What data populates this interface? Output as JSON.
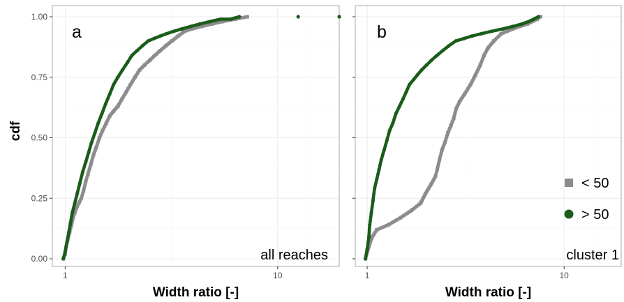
{
  "chart_data": {
    "type": "scatter",
    "ylabel": "cdf",
    "x_scale": "log",
    "y_ticks": [
      "0.00",
      "0.25",
      "0.50",
      "0.75",
      "1.00"
    ],
    "ylim": [
      0,
      1
    ],
    "legend_placement": "bottom-right of panel b",
    "colors": {
      "lt50": "#8c8c8c",
      "gt50": "#1a5c1a"
    },
    "panels": [
      {
        "letter": "a",
        "note": "all reaches",
        "xlabel": "Width ratio [-]",
        "x_ticks": [
          "1",
          "10"
        ],
        "xlim": [
          0.87,
          19.5
        ],
        "series": [
          {
            "name": "< 50",
            "points": [
              [
                0.98,
                0.0
              ],
              [
                1.0,
                0.02
              ],
              [
                1.01,
                0.05
              ],
              [
                1.03,
                0.08
              ],
              [
                1.05,
                0.11
              ],
              [
                1.07,
                0.14
              ],
              [
                1.09,
                0.17
              ],
              [
                1.11,
                0.19
              ],
              [
                1.13,
                0.21
              ],
              [
                1.16,
                0.23
              ],
              [
                1.19,
                0.25
              ],
              [
                1.22,
                0.28
              ],
              [
                1.25,
                0.32
              ],
              [
                1.28,
                0.35
              ],
              [
                1.32,
                0.39
              ],
              [
                1.36,
                0.43
              ],
              [
                1.4,
                0.46
              ],
              [
                1.45,
                0.5
              ],
              [
                1.5,
                0.53
              ],
              [
                1.56,
                0.56
              ],
              [
                1.62,
                0.59
              ],
              [
                1.69,
                0.61
              ],
              [
                1.77,
                0.63
              ],
              [
                1.85,
                0.66
              ],
              [
                1.94,
                0.69
              ],
              [
                2.03,
                0.72
              ],
              [
                2.13,
                0.75
              ],
              [
                2.24,
                0.78
              ],
              [
                2.36,
                0.8
              ],
              [
                2.5,
                0.82
              ],
              [
                2.64,
                0.84
              ],
              [
                2.8,
                0.86
              ],
              [
                2.98,
                0.88
              ],
              [
                3.18,
                0.9
              ],
              [
                3.4,
                0.92
              ],
              [
                3.65,
                0.94
              ],
              [
                3.95,
                0.95
              ],
              [
                4.4,
                0.96
              ],
              [
                4.9,
                0.97
              ],
              [
                5.5,
                0.98
              ],
              [
                6.3,
                0.99
              ],
              [
                7.2,
                1.0
              ]
            ]
          },
          {
            "name": "> 50",
            "points": [
              [
                0.98,
                0.0
              ],
              [
                1.0,
                0.03
              ],
              [
                1.02,
                0.07
              ],
              [
                1.04,
                0.11
              ],
              [
                1.06,
                0.15
              ],
              [
                1.08,
                0.19
              ],
              [
                1.11,
                0.23
              ],
              [
                1.14,
                0.27
              ],
              [
                1.17,
                0.31
              ],
              [
                1.21,
                0.36
              ],
              [
                1.25,
                0.4
              ],
              [
                1.29,
                0.44
              ],
              [
                1.33,
                0.48
              ],
              [
                1.38,
                0.52
              ],
              [
                1.43,
                0.56
              ],
              [
                1.49,
                0.6
              ],
              [
                1.55,
                0.64
              ],
              [
                1.62,
                0.68
              ],
              [
                1.69,
                0.72
              ],
              [
                1.77,
                0.75
              ],
              [
                1.86,
                0.78
              ],
              [
                1.96,
                0.81
              ],
              [
                2.06,
                0.84
              ],
              [
                2.18,
                0.86
              ],
              [
                2.31,
                0.88
              ],
              [
                2.46,
                0.9
              ],
              [
                2.62,
                0.91
              ],
              [
                2.8,
                0.92
              ],
              [
                3.0,
                0.93
              ],
              [
                3.25,
                0.94
              ],
              [
                3.55,
                0.95
              ],
              [
                3.9,
                0.96
              ],
              [
                4.3,
                0.97
              ],
              [
                4.8,
                0.98
              ],
              [
                5.4,
                0.99
              ],
              [
                6.0,
                0.99
              ],
              [
                6.6,
                1.0
              ],
              [
                12.5,
                1.0
              ],
              [
                19.5,
                1.0
              ]
            ]
          }
        ]
      },
      {
        "letter": "b",
        "note": "cluster 1",
        "xlabel": "Width ratio [-]",
        "x_ticks": [
          "1",
          "10"
        ],
        "xlim": [
          0.87,
          19.5
        ],
        "series": [
          {
            "name": "< 50",
            "points": [
              [
                0.98,
                0.0
              ],
              [
                1.02,
                0.05
              ],
              [
                1.06,
                0.09
              ],
              [
                1.12,
                0.12
              ],
              [
                1.28,
                0.14
              ],
              [
                1.48,
                0.17
              ],
              [
                1.68,
                0.2
              ],
              [
                1.87,
                0.23
              ],
              [
                1.98,
                0.27
              ],
              [
                2.12,
                0.31
              ],
              [
                2.22,
                0.34
              ],
              [
                2.27,
                0.37
              ],
              [
                2.33,
                0.41
              ],
              [
                2.4,
                0.45
              ],
              [
                2.48,
                0.48
              ],
              [
                2.57,
                0.52
              ],
              [
                2.66,
                0.55
              ],
              [
                2.75,
                0.58
              ],
              [
                2.83,
                0.62
              ],
              [
                2.95,
                0.65
              ],
              [
                3.12,
                0.68
              ],
              [
                3.35,
                0.72
              ],
              [
                3.55,
                0.76
              ],
              [
                3.75,
                0.8
              ],
              [
                3.92,
                0.84
              ],
              [
                4.1,
                0.87
              ],
              [
                4.4,
                0.9
              ],
              [
                4.8,
                0.93
              ],
              [
                5.5,
                0.95
              ],
              [
                6.5,
                0.97
              ],
              [
                7.3,
                0.99
              ],
              [
                7.6,
                1.0
              ]
            ]
          },
          {
            "name": "> 50",
            "points": [
              [
                0.98,
                0.0
              ],
              [
                1.0,
                0.04
              ],
              [
                1.02,
                0.09
              ],
              [
                1.03,
                0.14
              ],
              [
                1.05,
                0.19
              ],
              [
                1.07,
                0.24
              ],
              [
                1.09,
                0.29
              ],
              [
                1.12,
                0.33
              ],
              [
                1.15,
                0.37
              ],
              [
                1.18,
                0.41
              ],
              [
                1.22,
                0.45
              ],
              [
                1.26,
                0.49
              ],
              [
                1.3,
                0.53
              ],
              [
                1.35,
                0.56
              ],
              [
                1.4,
                0.6
              ],
              [
                1.46,
                0.63
              ],
              [
                1.52,
                0.66
              ],
              [
                1.58,
                0.69
              ],
              [
                1.64,
                0.72
              ],
              [
                1.72,
                0.74
              ],
              [
                1.8,
                0.76
              ],
              [
                1.89,
                0.78
              ],
              [
                2.0,
                0.8
              ],
              [
                2.12,
                0.82
              ],
              [
                2.26,
                0.84
              ],
              [
                2.42,
                0.86
              ],
              [
                2.6,
                0.88
              ],
              [
                2.82,
                0.9
              ],
              [
                3.1,
                0.91
              ],
              [
                3.4,
                0.92
              ],
              [
                3.8,
                0.93
              ],
              [
                4.3,
                0.94
              ],
              [
                4.9,
                0.95
              ],
              [
                5.5,
                0.96
              ],
              [
                6.1,
                0.97
              ],
              [
                6.6,
                0.98
              ],
              [
                7.0,
                0.99
              ],
              [
                7.4,
                1.0
              ]
            ]
          }
        ]
      }
    ]
  }
}
